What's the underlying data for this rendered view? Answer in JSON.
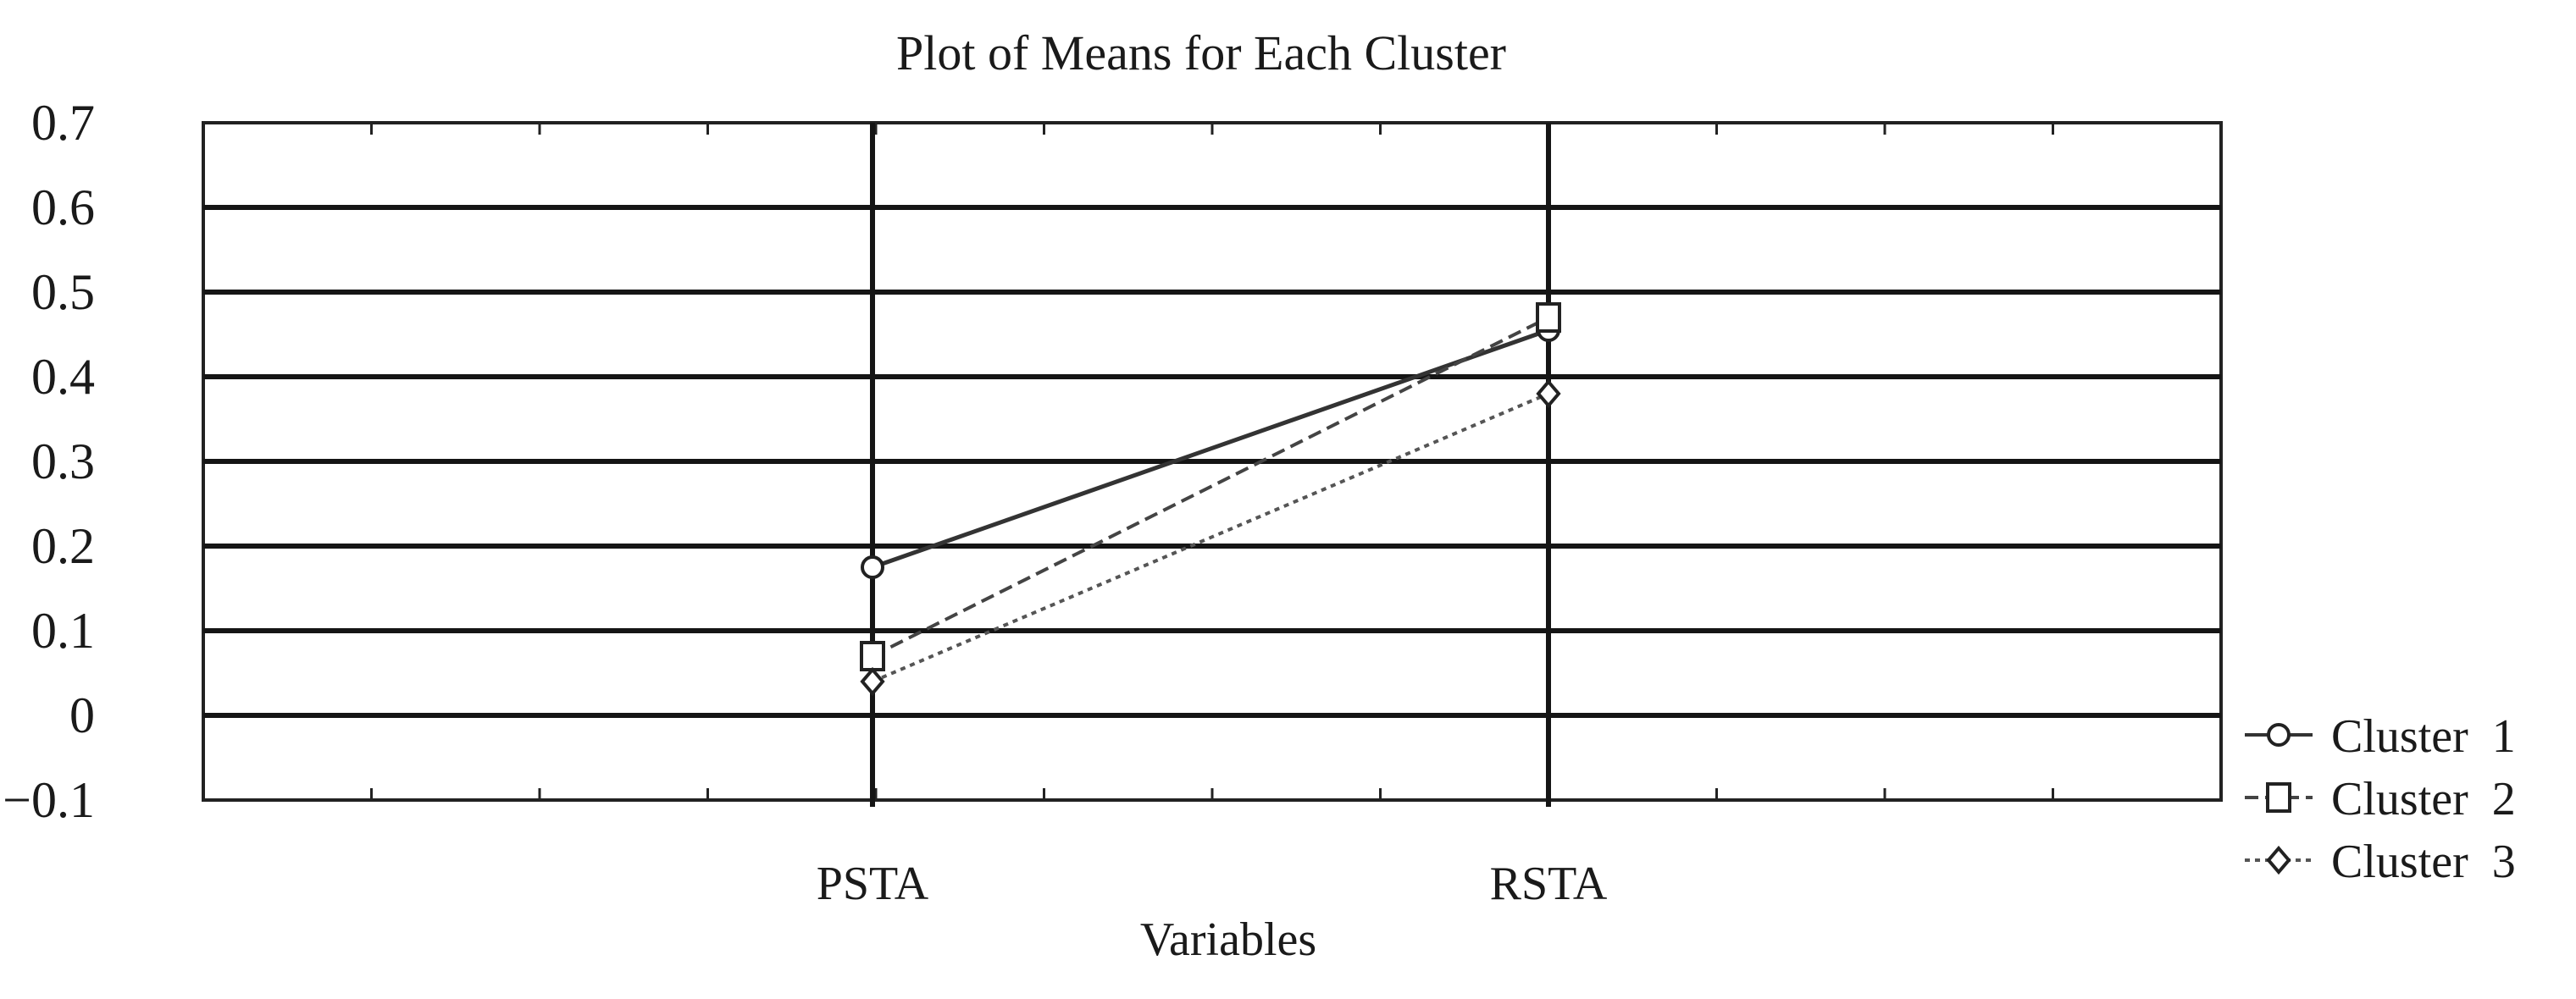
{
  "chart_data": {
    "type": "line",
    "title": "Plot of Means for Each Cluster",
    "xlabel": "Variables",
    "ylabel": "",
    "categories": [
      "PSTA",
      "RSTA"
    ],
    "ylim": [
      -0.1,
      0.7
    ],
    "yticks": [
      -0.1,
      0,
      0.1,
      0.2,
      0.3,
      0.4,
      0.5,
      0.6,
      0.7
    ],
    "ytick_labels": [
      "−0.1",
      "0",
      "0.1",
      "0.2",
      "0.3",
      "0.4",
      "0.5",
      "0.6",
      "0.7"
    ],
    "grid": true,
    "legend_position": "right",
    "series": [
      {
        "name": "Cluster  1",
        "values": [
          0.175,
          0.455
        ],
        "marker": "circle",
        "line_style": "solid",
        "color": "#333333"
      },
      {
        "name": "Cluster  2",
        "values": [
          0.07,
          0.47
        ],
        "marker": "square",
        "line_style": "dashed",
        "color": "#444444"
      },
      {
        "name": "Cluster  3",
        "values": [
          0.04,
          0.38
        ],
        "marker": "diamond",
        "line_style": "dotted",
        "color": "#555555"
      }
    ]
  }
}
